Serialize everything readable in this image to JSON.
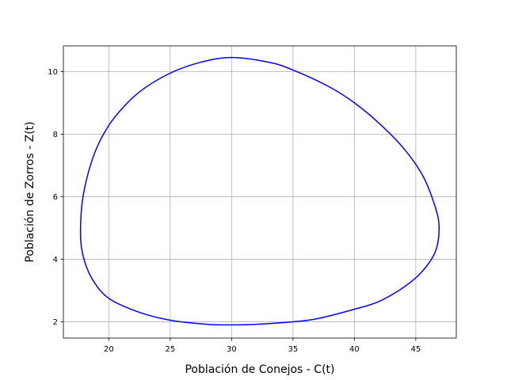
{
  "chart_data": {
    "type": "line",
    "title": "",
    "xlabel": "Población de Conejos - C(t)",
    "ylabel": "Población de Zorros - Z(t)",
    "xlim": [
      16.3,
      48.3
    ],
    "ylim": [
      1.48,
      10.82
    ],
    "x_ticks": [
      20,
      25,
      30,
      35,
      40,
      45
    ],
    "y_ticks": [
      2,
      4,
      6,
      8,
      10
    ],
    "x_tick_labels": [
      "20",
      "25",
      "30",
      "35",
      "40",
      "45"
    ],
    "y_tick_labels": [
      "2",
      "4",
      "6",
      "8",
      "10"
    ],
    "grid": true,
    "legend": "none",
    "series": [
      {
        "color": "#0000ff",
        "points": [
          [
            30.0,
            10.45
          ],
          [
            33.0,
            10.3
          ],
          [
            35.0,
            10.05
          ],
          [
            38.0,
            9.5
          ],
          [
            40.0,
            9.0
          ],
          [
            42.0,
            8.35
          ],
          [
            44.0,
            7.55
          ],
          [
            45.6,
            6.65
          ],
          [
            46.6,
            5.65
          ],
          [
            46.9,
            5.0
          ],
          [
            46.6,
            4.25
          ],
          [
            45.5,
            3.6
          ],
          [
            44.0,
            3.1
          ],
          [
            42.0,
            2.65
          ],
          [
            40.0,
            2.4
          ],
          [
            37.0,
            2.1
          ],
          [
            35.0,
            2.0
          ],
          [
            32.0,
            1.92
          ],
          [
            30.0,
            1.9
          ],
          [
            28.0,
            1.92
          ],
          [
            25.0,
            2.05
          ],
          [
            22.5,
            2.3
          ],
          [
            20.0,
            2.75
          ],
          [
            18.6,
            3.4
          ],
          [
            17.85,
            4.2
          ],
          [
            17.7,
            5.0
          ],
          [
            17.9,
            6.0
          ],
          [
            18.5,
            7.0
          ],
          [
            19.3,
            7.8
          ],
          [
            20.5,
            8.55
          ],
          [
            22.5,
            9.35
          ],
          [
            25.0,
            9.95
          ],
          [
            27.5,
            10.3
          ],
          [
            30.0,
            10.45
          ]
        ]
      }
    ]
  }
}
